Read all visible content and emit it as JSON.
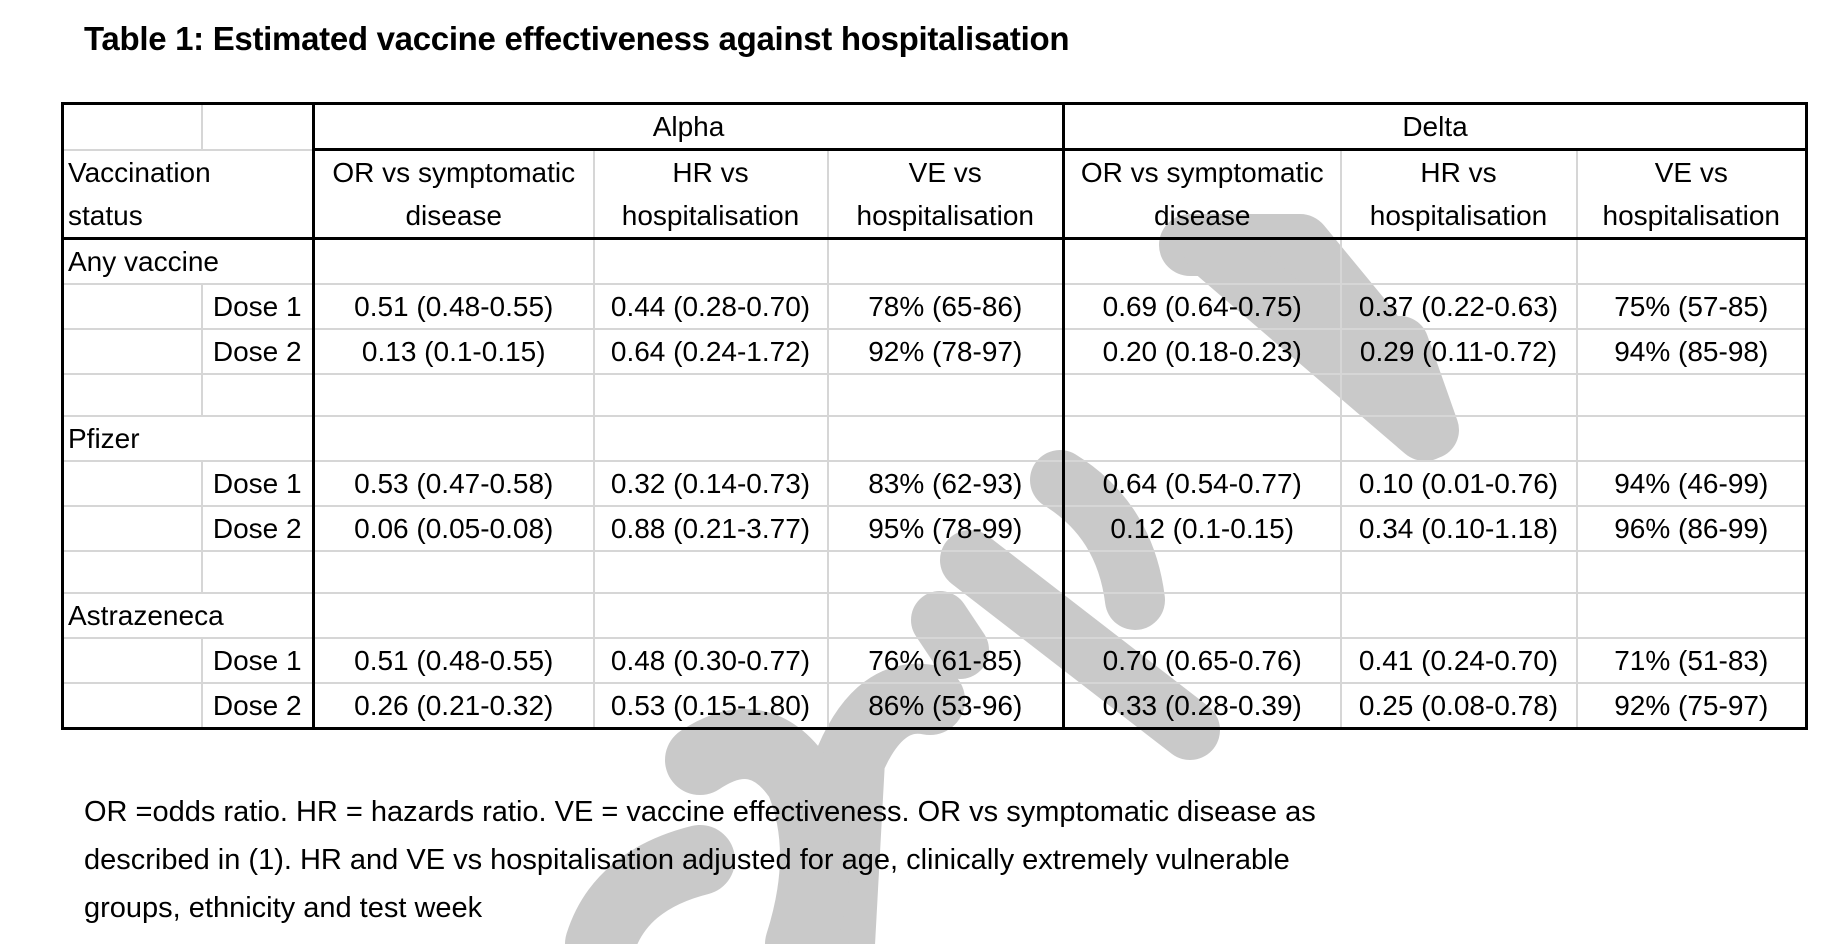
{
  "title": "Table 1: Estimated vaccine effectiveness against hospitalisation",
  "header": {
    "groups": [
      "Alpha",
      "Delta"
    ],
    "row_label_line1": "Vaccination",
    "row_label_line2": "status",
    "columns": [
      {
        "line1": "OR vs symptomatic",
        "line2": "disease"
      },
      {
        "line1": "HR vs",
        "line2": "hospitalisation"
      },
      {
        "line1": "VE vs",
        "line2": "hospitalisation"
      },
      {
        "line1": "OR vs symptomatic",
        "line2": "disease"
      },
      {
        "line1": "HR vs",
        "line2": "hospitalisation"
      },
      {
        "line1": "VE vs",
        "line2": "hospitalisation"
      }
    ]
  },
  "sections": [
    {
      "label": "Any vaccine",
      "rows": [
        {
          "dose": "Dose 1",
          "values": [
            "0.51 (0.48-0.55)",
            "0.44 (0.28-0.70)",
            "78% (65-86)",
            "0.69 (0.64-0.75)",
            "0.37 (0.22-0.63)",
            "75% (57-85)"
          ]
        },
        {
          "dose": "Dose 2",
          "values": [
            "0.13 (0.1-0.15)",
            "0.64 (0.24-1.72)",
            "92% (78-97)",
            "0.20 (0.18-0.23)",
            "0.29 (0.11-0.72)",
            "94% (85-98)"
          ]
        }
      ]
    },
    {
      "label": "Pfizer",
      "rows": [
        {
          "dose": "Dose 1",
          "values": [
            "0.53 (0.47-0.58)",
            "0.32 (0.14-0.73)",
            "83% (62-93)",
            "0.64 (0.54-0.77)",
            "0.10 (0.01-0.76)",
            "94% (46-99)"
          ]
        },
        {
          "dose": "Dose 2",
          "values": [
            "0.06 (0.05-0.08)",
            "0.88 (0.21-3.77)",
            "95% (78-99)",
            "0.12 (0.1-0.15)",
            "0.34 (0.10-1.18)",
            "96% (86-99)"
          ]
        }
      ]
    },
    {
      "label": "Astrazeneca",
      "rows": [
        {
          "dose": "Dose 1",
          "values": [
            "0.51 (0.48-0.55)",
            "0.48 (0.30-0.77)",
            "76% (61-85)",
            "0.70 (0.65-0.76)",
            "0.41 (0.24-0.70)",
            "71% (51-83)"
          ]
        },
        {
          "dose": "Dose 2",
          "values": [
            "0.26 (0.21-0.32)",
            "0.53 (0.15-1.80)",
            "86% (53-96)",
            "0.33 (0.28-0.39)",
            "0.25 (0.08-0.78)",
            "92% (75-97)"
          ]
        }
      ]
    }
  ],
  "footnote": {
    "line1": "OR =odds ratio. HR = hazards ratio. VE = vaccine effectiveness. OR vs symptomatic disease as",
    "line2": "described in (1). HR and VE vs hospitalisation adjusted for age, clinically extremely vulnerable",
    "line3": "groups, ethnicity and test week"
  },
  "watermark": {
    "color": "#c9c9c9"
  }
}
